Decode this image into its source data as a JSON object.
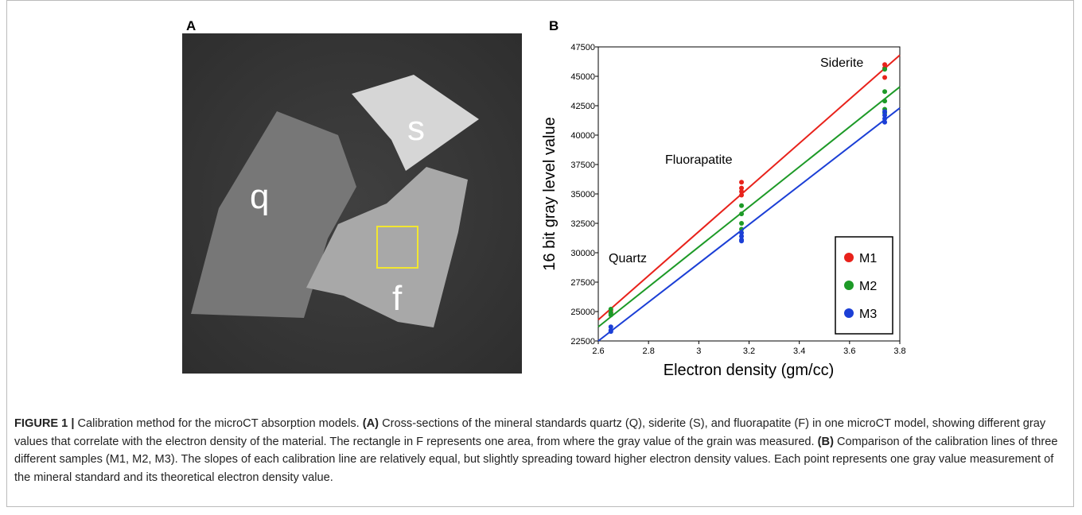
{
  "panel_a": {
    "label": "A",
    "grains": [
      "q",
      "s",
      "f"
    ]
  },
  "chart_data": {
    "type": "scatter",
    "panel_label": "B",
    "x_label": "Electron density (gm/cc)",
    "y_label": "16 bit gray level value",
    "xlim": [
      2.6,
      3.8
    ],
    "xticks": [
      2.6,
      2.8,
      3,
      3.2,
      3.4,
      3.6,
      3.8
    ],
    "ylim": [
      22500,
      47500
    ],
    "yticks": [
      22500,
      25000,
      27500,
      30000,
      32500,
      35000,
      37500,
      40000,
      42500,
      45000,
      47500
    ],
    "annotations": [
      "Quartz",
      "Fluorapatite",
      "Siderite"
    ],
    "legend_position": "lower right",
    "series": [
      {
        "name": "M1",
        "color": "#e8221b",
        "x": [
          2.65,
          2.65,
          2.65,
          3.17,
          3.17,
          3.17,
          3.17,
          3.74,
          3.74,
          3.74
        ],
        "values": [
          25100,
          24900,
          24800,
          36000,
          35500,
          35200,
          34900,
          46000,
          45700,
          44900
        ],
        "fit_x": [
          2.6,
          3.8
        ],
        "fit_y": [
          24300,
          46800
        ]
      },
      {
        "name": "M2",
        "color": "#1d9a27",
        "x": [
          2.65,
          2.65,
          2.65,
          3.17,
          3.17,
          3.17,
          3.17,
          3.74,
          3.74,
          3.74,
          3.74,
          3.74
        ],
        "values": [
          25200,
          24900,
          24700,
          34000,
          33300,
          32500,
          32000,
          45600,
          43700,
          42900,
          42200,
          41900
        ],
        "fit_x": [
          2.6,
          3.8
        ],
        "fit_y": [
          23700,
          44100
        ]
      },
      {
        "name": "M3",
        "color": "#1b3fd6",
        "x": [
          2.65,
          2.65,
          2.65,
          3.17,
          3.17,
          3.17,
          3.17,
          3.74,
          3.74,
          3.74,
          3.74
        ],
        "values": [
          23700,
          23400,
          23300,
          31700,
          31400,
          31100,
          31000,
          42000,
          41700,
          41400,
          41100
        ],
        "fit_x": [
          2.6,
          3.8
        ],
        "fit_y": [
          22500,
          42300
        ]
      }
    ]
  },
  "caption": {
    "label": "FIGURE 1 |",
    "intro": "Calibration method for the microCT absorption models.",
    "a_label": "(A)",
    "a_text": "Cross-sections of the mineral standards quartz (Q), siderite (S), and fluorapatite (F) in one microCT model, showing different gray values that correlate with the electron density of the material. The rectangle in F represents one area, from where the gray value of the grain was measured.",
    "b_label": "(B)",
    "b_text": "Comparison of the calibration lines of three different samples (M1, M2, M3). The slopes of each calibration line are relatively equal, but slightly spreading toward higher electron density values. Each point represents one gray value measurement of the mineral standard and its theoretical electron density value."
  }
}
